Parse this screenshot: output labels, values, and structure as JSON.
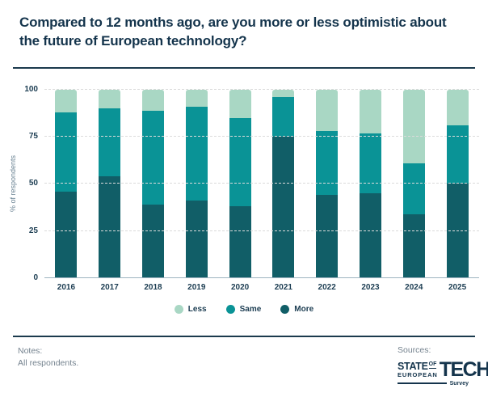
{
  "header": {
    "title": "Compared to 12 months ago, are you more or less optimistic about the future of European technology?"
  },
  "chart_data": {
    "type": "bar",
    "stacked": true,
    "title": "Compared to 12 months ago, are you more or less optimistic about the future of European technology?",
    "categories": [
      "2016",
      "2017",
      "2018",
      "2019",
      "2020",
      "2021",
      "2022",
      "2023",
      "2024",
      "2025"
    ],
    "series": [
      {
        "name": "Less",
        "color": "#A9D7C4",
        "values": [
          12,
          10,
          11,
          9,
          15,
          4,
          22,
          23,
          39,
          19
        ]
      },
      {
        "name": "Same",
        "color": "#0A9396",
        "values": [
          42,
          36,
          50,
          50,
          47,
          21,
          34,
          32,
          27,
          31
        ]
      },
      {
        "name": "More",
        "color": "#115E67",
        "values": [
          46,
          54,
          39,
          41,
          38,
          75,
          44,
          45,
          34,
          50
        ]
      }
    ],
    "stack_order_bottom_to_top": [
      "More",
      "Same",
      "Less"
    ],
    "xlabel": "",
    "ylabel": "% of respondents",
    "ylim": [
      0,
      100
    ],
    "yticks": [
      0,
      25,
      50,
      75,
      100
    ],
    "grid": "dashed-horizontal",
    "legend_position": "bottom"
  },
  "colors": {
    "title_navy": "#14344C",
    "tick_navy": "#1C3D52",
    "axis_label_gray": "#6C8494",
    "gridline": "#DBDBDB",
    "axis_line": "#9DB4C0",
    "footer_gray": "#75838F",
    "rule_navy": "#1B3A4D"
  },
  "footer": {
    "notes_label": "Notes:",
    "notes_text": "All respondents.",
    "sources_label": "Sources:",
    "logo": {
      "state": "STATE",
      "of": "OF",
      "european": "EUROPEAN",
      "tech": "TECH",
      "survey": "Survey"
    }
  }
}
